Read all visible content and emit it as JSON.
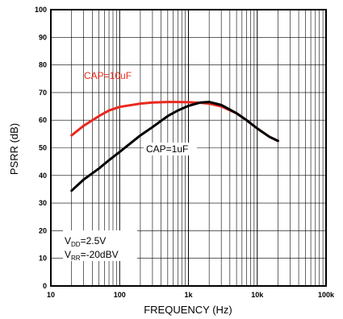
{
  "chart_data": {
    "type": "line",
    "xlabel": "FREQUENCY (Hz)",
    "ylabel": "PSRR (dB)",
    "x_scale": "log",
    "xlim": [
      10,
      100000
    ],
    "ylim": [
      0,
      100
    ],
    "x_ticks": [
      {
        "value": 10,
        "label": "10"
      },
      {
        "value": 100,
        "label": "100"
      },
      {
        "value": 1000,
        "label": "1k"
      },
      {
        "value": 10000,
        "label": "10k"
      },
      {
        "value": 100000,
        "label": "100k"
      }
    ],
    "y_ticks": [
      0,
      10,
      20,
      30,
      40,
      50,
      60,
      70,
      80,
      90,
      100
    ],
    "grid": true,
    "series": [
      {
        "name": "CAP=10uF",
        "color": "#e8281e",
        "x": [
          20,
          30,
          50,
          70,
          100,
          150,
          200,
          300,
          500,
          700,
          1000,
          1500,
          2000,
          3000,
          5000,
          7000,
          10000,
          15000,
          20000
        ],
        "y": [
          54.5,
          58,
          61.5,
          63.5,
          64.8,
          65.5,
          66,
          66.4,
          66.6,
          66.6,
          66.5,
          66.3,
          66,
          65,
          62.5,
          60,
          57,
          54,
          52.5
        ]
      },
      {
        "name": "CAP=1uF",
        "color": "#000000",
        "x": [
          20,
          30,
          50,
          70,
          100,
          150,
          200,
          300,
          500,
          700,
          1000,
          1500,
          2000,
          3000,
          5000,
          7000,
          10000,
          15000,
          20000
        ],
        "y": [
          34.5,
          38.5,
          42.5,
          45.5,
          48.5,
          52,
          54.5,
          57.5,
          61.5,
          63.5,
          65.2,
          66.4,
          66.6,
          65.5,
          62.5,
          60,
          57,
          54,
          52.5
        ]
      }
    ],
    "annotations": {
      "vdd": {
        "prefix": "V",
        "sub": "DD",
        "text": "=2.5V"
      },
      "vrr": {
        "prefix": "V",
        "sub": "RR",
        "text": "=-20dBV"
      }
    }
  }
}
